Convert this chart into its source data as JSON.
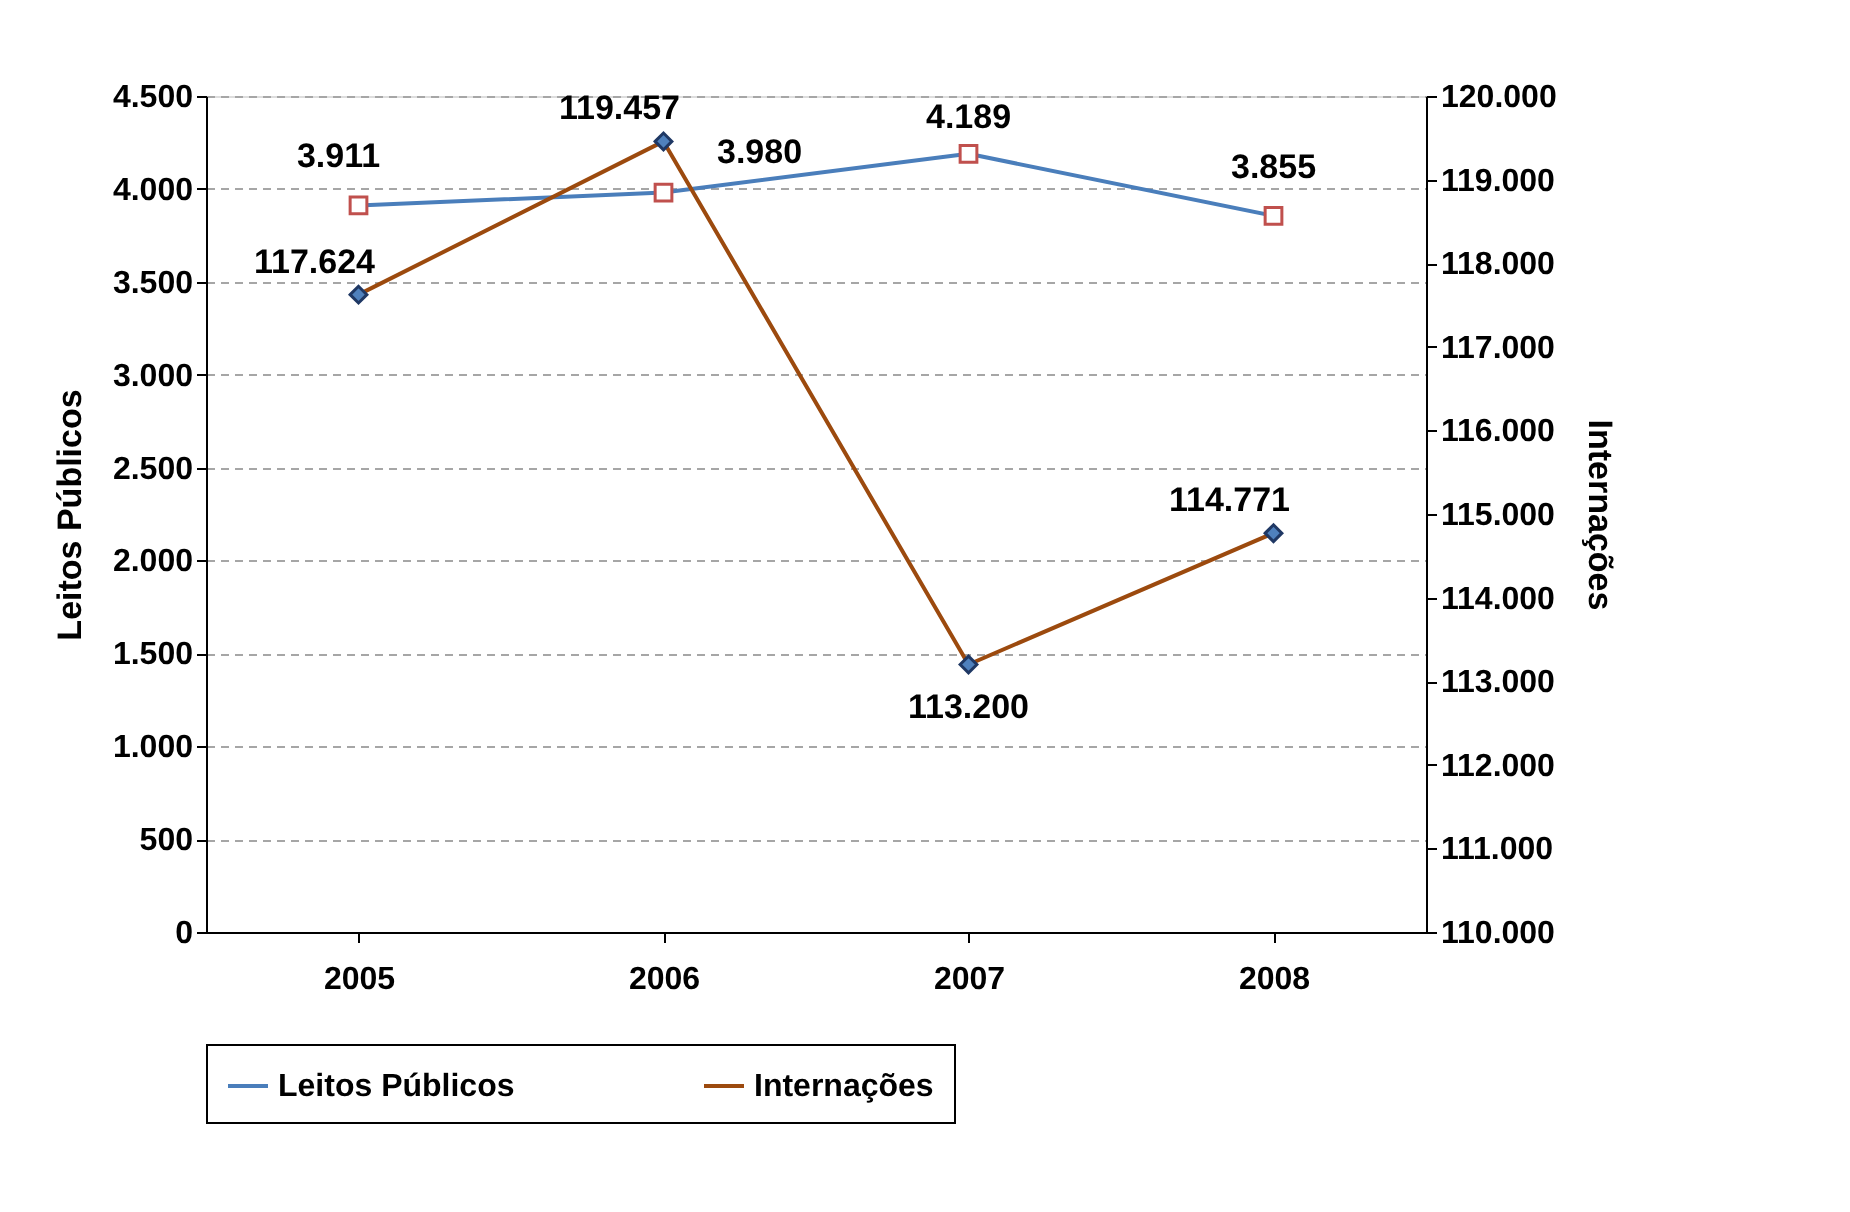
{
  "chart_data": {
    "type": "line",
    "categories": [
      "2005",
      "2006",
      "2007",
      "2008"
    ],
    "ylabel": "Leitos Públicos",
    "y2label": "Internações",
    "ylim": [
      0,
      4500
    ],
    "yticks": [
      0,
      {
        "value": 500,
        "label": "500"
      },
      {
        "value": 1000,
        "label": "1.000"
      },
      {
        "value": 1500,
        "label": "1.500"
      },
      {
        "value": 2000,
        "label": "2.000"
      },
      {
        "value": 2500,
        "label": "2.500"
      },
      {
        "value": 3000,
        "label": "3.000"
      },
      {
        "value": 3500,
        "label": "3.500"
      },
      {
        "value": 4000,
        "label": "4.000"
      },
      {
        "value": 4500,
        "label": "4.500"
      }
    ],
    "y2lim": [
      110000,
      120000
    ],
    "y2ticks": [
      {
        "value": 110000,
        "label": "110.000"
      },
      {
        "value": 111000,
        "label": "111.000"
      },
      {
        "value": 112000,
        "label": "112.000"
      },
      {
        "value": 113000,
        "label": "113.000"
      },
      {
        "value": 114000,
        "label": "114.000"
      },
      {
        "value": 115000,
        "label": "115.000"
      },
      {
        "value": 116000,
        "label": "116.000"
      },
      {
        "value": 117000,
        "label": "117.000"
      },
      {
        "value": 118000,
        "label": "118.000"
      },
      {
        "value": 119000,
        "label": "119.000"
      },
      {
        "value": 120000,
        "label": "120.000"
      }
    ],
    "series": [
      {
        "name": "Leitos Públicos",
        "color": "#4a7ebb",
        "marker": "square",
        "values": [
          3911,
          3980,
          4189,
          3855
        ],
        "value_labels": [
          "3.911",
          "3.980",
          "4.189",
          "3.855"
        ]
      },
      {
        "name": "Internações",
        "color": "#9c4a0e",
        "marker": "diamond",
        "axis": "y2",
        "values": [
          117624,
          119457,
          113200,
          114771
        ],
        "value_labels": [
          "117.624",
          "119.457",
          "113.200",
          "114.771"
        ]
      }
    ],
    "grid": "y",
    "legend": "bottom",
    "line_style": "solid"
  }
}
